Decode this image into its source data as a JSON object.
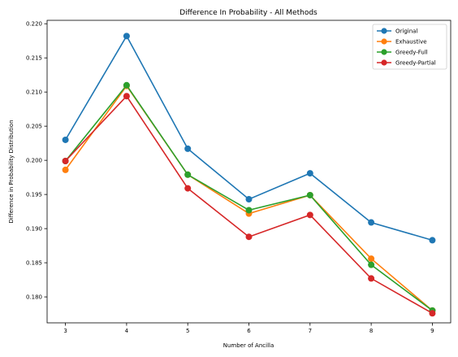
{
  "chart_data": {
    "type": "line",
    "title": "Difference In Probability - All Methods",
    "xlabel": "Number of Ancilla",
    "ylabel": "Difference in Probability Distribution",
    "x": [
      3,
      4,
      5,
      6,
      7,
      8,
      9
    ],
    "x_ticks": [
      "3",
      "4",
      "5",
      "6",
      "7",
      "8",
      "9"
    ],
    "y_ticks": [
      "0.180",
      "0.185",
      "0.190",
      "0.195",
      "0.200",
      "0.205",
      "0.210",
      "0.215",
      "0.220"
    ],
    "xlim": [
      2.7,
      9.3
    ],
    "ylim": [
      0.1762,
      0.2205
    ],
    "grid": false,
    "legend_position": "top-right",
    "series": [
      {
        "name": "Original",
        "color": "#1f77b4",
        "values": [
          0.203,
          0.2182,
          0.2017,
          0.1943,
          0.1981,
          0.1909,
          0.1883
        ]
      },
      {
        "name": "Exhaustive",
        "color": "#ff7f0e",
        "values": [
          0.1986,
          0.2109,
          0.1979,
          0.1922,
          0.1949,
          0.1856,
          0.178
        ]
      },
      {
        "name": "Greedy-Full",
        "color": "#2ca02c",
        "values": [
          0.1999,
          0.211,
          0.1979,
          0.1927,
          0.1949,
          0.1847,
          0.178
        ]
      },
      {
        "name": "Greedy-Partial",
        "color": "#d62728",
        "values": [
          0.1999,
          0.2094,
          0.1959,
          0.1888,
          0.192,
          0.1827,
          0.1776
        ]
      }
    ]
  }
}
